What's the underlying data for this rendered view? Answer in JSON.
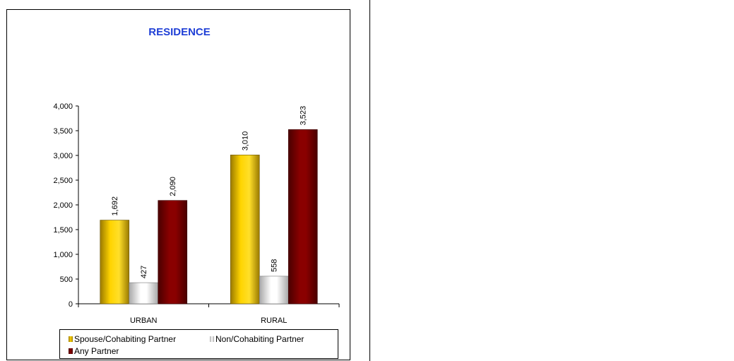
{
  "chart_data": {
    "type": "bar",
    "title": "RESIDENCE",
    "categories": [
      "URBAN",
      "RURAL"
    ],
    "series": [
      {
        "name": "Spouse/Cohabiting Partner",
        "values": [
          1692,
          3010
        ],
        "labels": [
          "1,692",
          "3,010"
        ],
        "color": "#f0c000"
      },
      {
        "name": "Non/Cohabiting Partner",
        "values": [
          427,
          558
        ],
        "labels": [
          "427",
          "558"
        ],
        "color": "#e0e0e0"
      },
      {
        "name": "Any Partner",
        "values": [
          2090,
          3523
        ],
        "labels": [
          "2,090",
          "3,523"
        ],
        "color": "#7a0000"
      }
    ],
    "ylim": [
      0,
      4000
    ],
    "yticks": [
      0,
      500,
      1000,
      1500,
      2000,
      2500,
      3000,
      3500,
      4000
    ],
    "ytick_labels": [
      "0",
      "500",
      "1,000",
      "1,500",
      "2,000",
      "2,500",
      "3,000",
      "3,500",
      "4,000"
    ],
    "grid": false,
    "legend_position": "bottom"
  }
}
